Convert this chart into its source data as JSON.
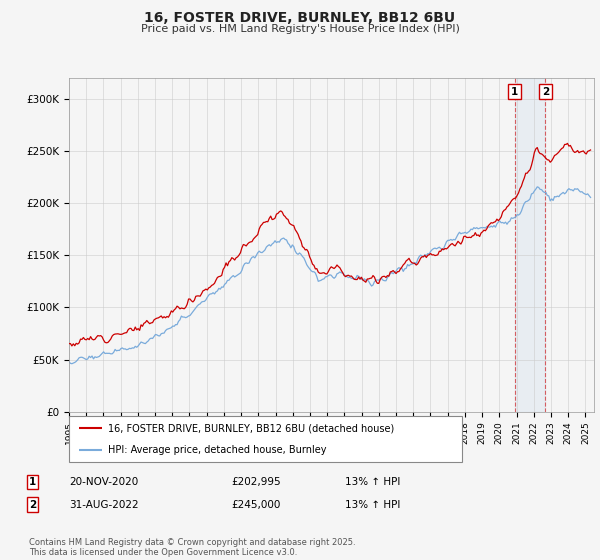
{
  "title": "16, FOSTER DRIVE, BURNLEY, BB12 6BU",
  "subtitle": "Price paid vs. HM Land Registry's House Price Index (HPI)",
  "ylabel_ticks": [
    "£0",
    "£50K",
    "£100K",
    "£150K",
    "£200K",
    "£250K",
    "£300K"
  ],
  "ytick_values": [
    0,
    50000,
    100000,
    150000,
    200000,
    250000,
    300000
  ],
  "ylim": [
    0,
    320000
  ],
  "xlim_start": 1995.0,
  "xlim_end": 2025.5,
  "xtick_years": [
    1995,
    1996,
    1997,
    1998,
    1999,
    2000,
    2001,
    2002,
    2003,
    2004,
    2005,
    2006,
    2007,
    2008,
    2009,
    2010,
    2011,
    2012,
    2013,
    2014,
    2015,
    2016,
    2017,
    2018,
    2019,
    2020,
    2021,
    2022,
    2023,
    2024,
    2025
  ],
  "line1_color": "#cc0000",
  "line2_color": "#7aabdb",
  "line1_label": "16, FOSTER DRIVE, BURNLEY, BB12 6BU (detached house)",
  "line2_label": "HPI: Average price, detached house, Burnley",
  "marker1_date": 2020.89,
  "marker1_value": 202995,
  "marker2_date": 2022.67,
  "marker2_value": 245000,
  "footer": "Contains HM Land Registry data © Crown copyright and database right 2025.\nThis data is licensed under the Open Government Licence v3.0.",
  "background_color": "#f5f5f5",
  "grid_color": "#cccccc"
}
